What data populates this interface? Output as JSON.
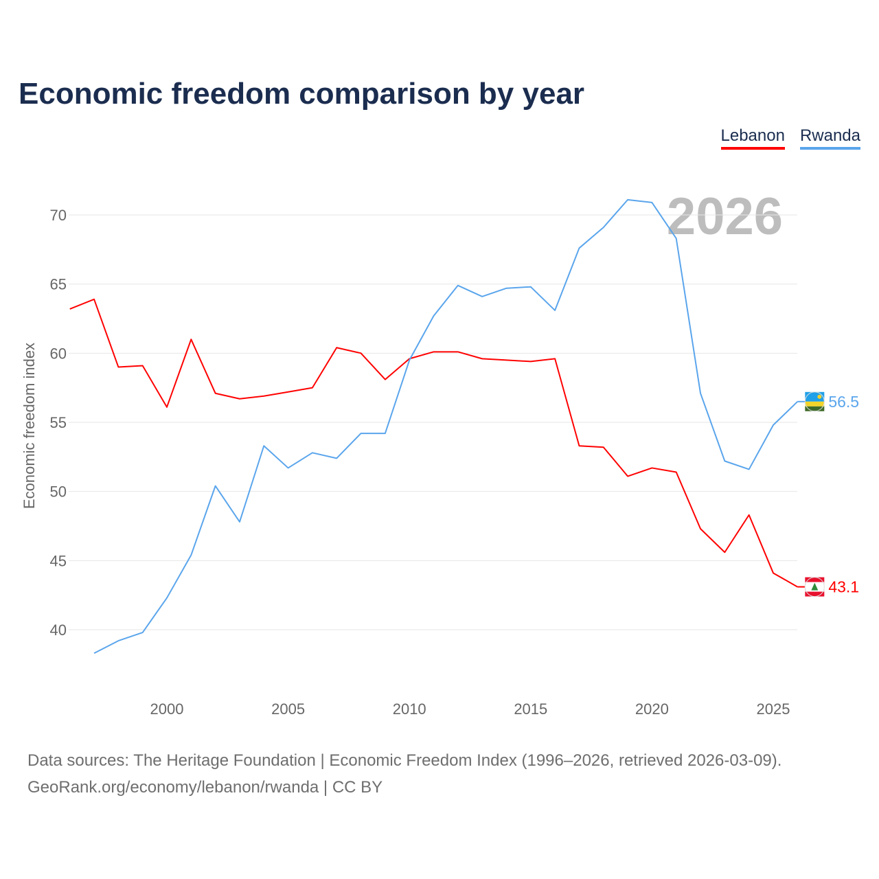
{
  "chart_data": {
    "type": "line",
    "title": "Economic freedom comparison by year",
    "xlabel": "",
    "ylabel": "Economic freedom index",
    "xlim": [
      1996,
      2026
    ],
    "ylim": [
      35.3,
      73.5
    ],
    "x_ticks": [
      2000,
      2005,
      2010,
      2015,
      2020,
      2025
    ],
    "y_ticks": [
      40,
      45,
      50,
      55,
      60,
      65,
      70
    ],
    "grid": true,
    "legend_position": "top-right",
    "watermark_year": "2026",
    "series": [
      {
        "name": "Lebanon",
        "color": "#ff0000",
        "end_label": "43.1",
        "x": [
          1996,
          1997,
          1998,
          1999,
          2000,
          2001,
          2002,
          2003,
          2004,
          2005,
          2006,
          2007,
          2008,
          2009,
          2010,
          2011,
          2012,
          2013,
          2014,
          2015,
          2016,
          2017,
          2018,
          2019,
          2020,
          2021,
          2022,
          2023,
          2024,
          2025,
          2026
        ],
        "values": [
          63.2,
          63.9,
          59.0,
          59.1,
          56.1,
          61.0,
          57.1,
          56.7,
          56.9,
          57.2,
          57.5,
          60.4,
          60.0,
          58.1,
          59.6,
          60.1,
          60.1,
          59.6,
          59.5,
          59.4,
          59.6,
          53.3,
          53.2,
          51.1,
          51.7,
          51.4,
          47.3,
          45.6,
          48.3,
          44.1,
          43.1
        ]
      },
      {
        "name": "Rwanda",
        "color": "#5aa5ec",
        "end_label": "56.5",
        "x": [
          1997,
          1998,
          1999,
          2000,
          2001,
          2002,
          2003,
          2004,
          2005,
          2006,
          2007,
          2008,
          2009,
          2010,
          2011,
          2012,
          2013,
          2014,
          2015,
          2016,
          2017,
          2018,
          2019,
          2020,
          2021,
          2022,
          2023,
          2024,
          2025,
          2026
        ],
        "values": [
          38.3,
          39.2,
          39.8,
          42.3,
          45.4,
          50.4,
          47.8,
          53.3,
          51.7,
          52.8,
          52.4,
          54.2,
          54.2,
          59.5,
          62.7,
          64.9,
          64.1,
          64.7,
          64.8,
          63.1,
          67.6,
          69.1,
          71.1,
          70.9,
          68.3,
          57.1,
          52.2,
          51.6,
          54.8,
          56.5
        ]
      }
    ]
  },
  "footer": {
    "line1": "Data sources: The Heritage Foundation | Economic Freedom Index (1996–2026, retrieved 2026-03-09).",
    "line2": "GeoRank.org/economy/lebanon/rwanda | CC BY"
  }
}
